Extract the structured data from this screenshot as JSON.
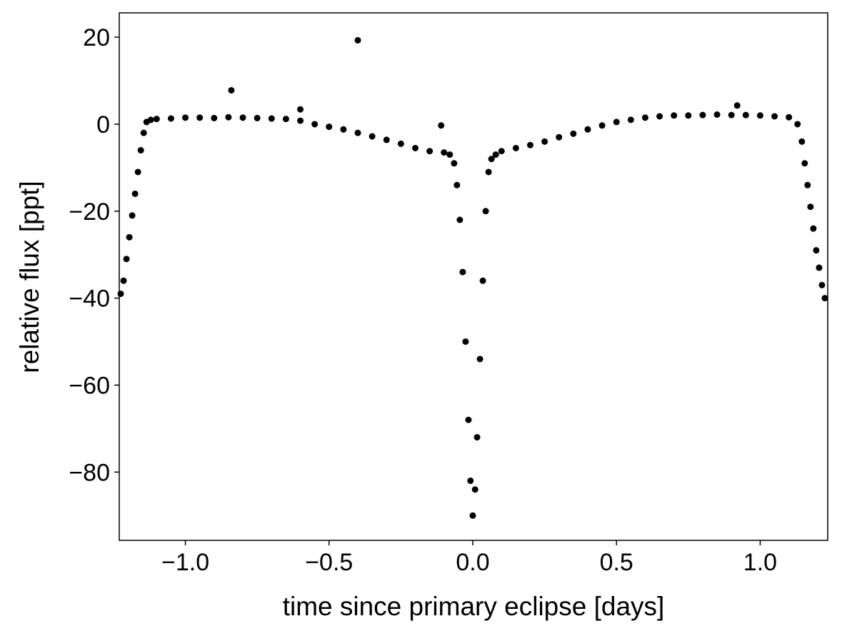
{
  "chart_data": {
    "type": "scatter",
    "xlabel": "time since primary eclipse [days]",
    "ylabel": "relative flux [ppt]",
    "color": "#000000",
    "x": [
      -1.225,
      -1.215,
      -1.205,
      -1.195,
      -1.185,
      -1.175,
      -1.165,
      -1.155,
      -1.145,
      -1.135,
      -1.12,
      -1.1,
      -1.05,
      -1.0,
      -0.95,
      -0.9,
      -0.85,
      -0.8,
      -0.75,
      -0.7,
      -0.65,
      -0.6,
      -0.55,
      -0.5,
      -0.45,
      -0.4,
      -0.35,
      -0.3,
      -0.25,
      -0.2,
      -0.15,
      -0.1,
      -0.08,
      -0.065,
      -0.055,
      -0.045,
      -0.035,
      -0.025,
      -0.015,
      -0.008,
      0,
      0.008,
      0.015,
      0.025,
      0.035,
      0.045,
      0.055,
      0.065,
      0.08,
      0.1,
      0.15,
      0.2,
      0.25,
      0.3,
      0.35,
      0.4,
      0.45,
      0.5,
      0.55,
      0.6,
      0.65,
      0.7,
      0.75,
      0.8,
      0.85,
      0.9,
      0.95,
      1.0,
      1.05,
      1.1,
      1.13,
      1.145,
      1.155,
      1.165,
      1.175,
      1.185,
      1.195,
      1.205,
      1.215,
      1.225,
      -0.84,
      -0.4,
      -0.11,
      0.92,
      -0.6
    ],
    "values": [
      -39,
      -36,
      -31,
      -26,
      -21,
      -16,
      -11,
      -6,
      -2,
      0.5,
      1,
      1.2,
      1.3,
      1.5,
      1.5,
      1.4,
      1.6,
      1.5,
      1.4,
      1.3,
      1.2,
      0.8,
      0,
      -0.6,
      -1.2,
      -2,
      -2.8,
      -3.6,
      -4.5,
      -5.5,
      -6.2,
      -6.5,
      -7,
      -9,
      -14,
      -22,
      -34,
      -50,
      -68,
      -82,
      -90,
      -84,
      -72,
      -54,
      -36,
      -20,
      -11,
      -8,
      -7,
      -6.2,
      -5.5,
      -4.8,
      -4,
      -3,
      -2.2,
      -1.2,
      -0.3,
      0.5,
      1,
      1.5,
      1.8,
      2,
      2,
      2.1,
      2.2,
      2.1,
      2.1,
      2,
      1.8,
      1.6,
      0,
      -4,
      -9,
      -14,
      -19,
      -24,
      -29,
      -33,
      -37,
      -40,
      7.8,
      19.3,
      -0.3,
      4.3,
      3.4
    ],
    "xlim": [
      -1.23,
      1.235
    ],
    "ylim": [
      -95.7,
      25.6
    ],
    "xticks": [
      {
        "value": -1,
        "label": "−1.0"
      },
      {
        "value": -0.5,
        "label": "−0.5"
      },
      {
        "value": 0,
        "label": "0.0"
      },
      0.5,
      {
        "value": 1,
        "label": "1.0"
      }
    ],
    "yticks": [
      20,
      0,
      {
        "value": -20,
        "label": "−20"
      },
      {
        "value": -40,
        "label": "−40"
      },
      {
        "value": -60,
        "label": "−60"
      },
      {
        "value": -80,
        "label": "−80"
      }
    ]
  }
}
